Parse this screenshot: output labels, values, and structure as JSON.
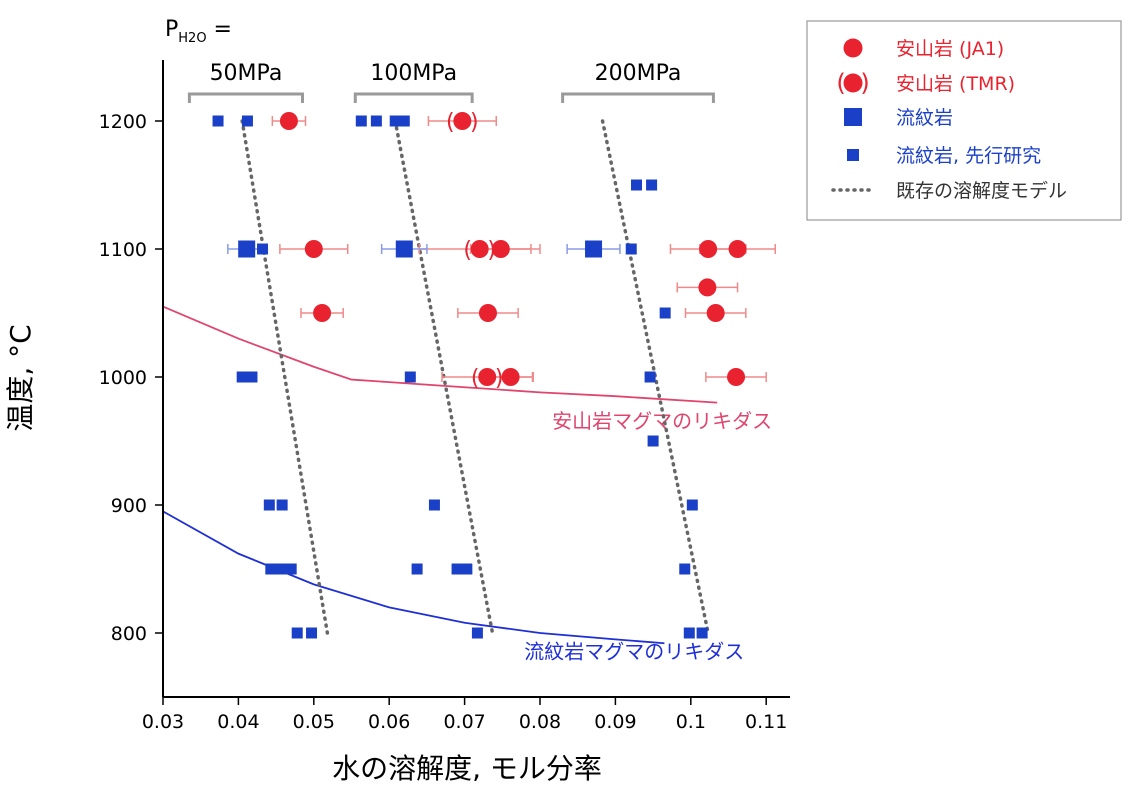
{
  "colors": {
    "andesite": "#e8232f",
    "rhyolite": "#1b40c8",
    "andesite_liquidus": "#e0456e",
    "rhyolite_liquidus": "#1e2fd6",
    "model": "#666666",
    "errorbar_red": "#f08a8a",
    "errorbar_blue": "#8a9be8"
  },
  "chart_data": {
    "type": "scatter",
    "xlabel": "水の溶解度, モル分率",
    "ylabel": "温度, °C",
    "xlim": [
      0.03,
      0.115
    ],
    "ylim": [
      750,
      1250
    ],
    "x_ticks": [
      0.03,
      0.04,
      0.05,
      0.06,
      0.07,
      0.08,
      0.09,
      0.1,
      0.11
    ],
    "x_tick_labels": [
      "0.03",
      "0.04",
      "0.05",
      "0.06",
      "0.07",
      "0.08",
      "0.09",
      "0.1",
      "0.11"
    ],
    "y_ticks": [
      800,
      900,
      1000,
      1100,
      1200
    ],
    "y_tick_labels": [
      "800",
      "900",
      "1000",
      "1100",
      "1200"
    ],
    "pressure_prefix": "P",
    "pressure_sub": "H2O",
    "pressure_suffix": " =",
    "pressure_groups": [
      {
        "label": "50MPa",
        "x_range": [
          0.0335,
          0.0485
        ]
      },
      {
        "label": "100MPa",
        "x_range": [
          0.0555,
          0.071
        ]
      },
      {
        "label": "200MPa",
        "x_range": [
          0.083,
          0.103
        ]
      }
    ],
    "legend": [
      {
        "marker": "circle-red",
        "label": "安山岩 (JA1)"
      },
      {
        "marker": "circle-red-paren",
        "label": "安山岩 (TMR)"
      },
      {
        "marker": "square-blue-large",
        "label": "流紋岩"
      },
      {
        "marker": "square-blue-small",
        "label": "流紋岩, 先行研究"
      },
      {
        "marker": "dotted-line",
        "label": "既存の溶解度モデル"
      }
    ],
    "paren_glyphs": [
      "(",
      ")"
    ],
    "series": [
      {
        "name": "安山岩 (JA1)",
        "marker": "circle",
        "points": [
          {
            "x": 0.0467,
            "y": 1200,
            "err": 0.0022
          },
          {
            "x": 0.05,
            "y": 1100,
            "err": 0.0045
          },
          {
            "x": 0.0748,
            "y": 1100,
            "err": 0.004
          },
          {
            "x": 0.1023,
            "y": 1100,
            "err": 0.005
          },
          {
            "x": 0.1062,
            "y": 1100,
            "err": 0.005
          },
          {
            "x": 0.0511,
            "y": 1050,
            "err": 0.0028
          },
          {
            "x": 0.0731,
            "y": 1050,
            "err": 0.004
          },
          {
            "x": 0.1022,
            "y": 1070,
            "err": 0.004
          },
          {
            "x": 0.1033,
            "y": 1050,
            "err": 0.004
          },
          {
            "x": 0.0761,
            "y": 1000,
            "err": 0.003
          },
          {
            "x": 0.106,
            "y": 1000,
            "err": 0.004
          }
        ]
      },
      {
        "name": "安山岩 (TMR)",
        "marker": "circle-paren",
        "points": [
          {
            "x": 0.0697,
            "y": 1200,
            "err": 0.0045
          },
          {
            "x": 0.072,
            "y": 1100,
            "err": 0.008
          },
          {
            "x": 0.073,
            "y": 1000,
            "err": 0.006
          }
        ]
      },
      {
        "name": "流紋岩",
        "marker": "square-large",
        "points": [
          {
            "x": 0.0411,
            "y": 1100,
            "err": 0.0025
          },
          {
            "x": 0.062,
            "y": 1100,
            "err": 0.003
          },
          {
            "x": 0.0871,
            "y": 1100,
            "err": 0.0035
          }
        ]
      },
      {
        "name": "流紋岩, 先行研究",
        "marker": "square-small",
        "points": [
          {
            "x": 0.0373,
            "y": 1200
          },
          {
            "x": 0.0412,
            "y": 1200
          },
          {
            "x": 0.0563,
            "y": 1200
          },
          {
            "x": 0.0583,
            "y": 1200
          },
          {
            "x": 0.0608,
            "y": 1200
          },
          {
            "x": 0.062,
            "y": 1200
          },
          {
            "x": 0.0928,
            "y": 1150
          },
          {
            "x": 0.0948,
            "y": 1150
          },
          {
            "x": 0.0432,
            "y": 1100
          },
          {
            "x": 0.0921,
            "y": 1100
          },
          {
            "x": 0.0966,
            "y": 1050
          },
          {
            "x": 0.0405,
            "y": 1000
          },
          {
            "x": 0.0418,
            "y": 1000
          },
          {
            "x": 0.0628,
            "y": 1000
          },
          {
            "x": 0.0946,
            "y": 1000
          },
          {
            "x": 0.095,
            "y": 950
          },
          {
            "x": 0.0441,
            "y": 900
          },
          {
            "x": 0.0458,
            "y": 900
          },
          {
            "x": 0.066,
            "y": 900
          },
          {
            "x": 0.1002,
            "y": 900
          },
          {
            "x": 0.0443,
            "y": 850
          },
          {
            "x": 0.0457,
            "y": 850
          },
          {
            "x": 0.047,
            "y": 850
          },
          {
            "x": 0.0637,
            "y": 850
          },
          {
            "x": 0.069,
            "y": 850
          },
          {
            "x": 0.0703,
            "y": 850
          },
          {
            "x": 0.0992,
            "y": 850
          },
          {
            "x": 0.0478,
            "y": 800
          },
          {
            "x": 0.0497,
            "y": 800
          },
          {
            "x": 0.0717,
            "y": 800
          },
          {
            "x": 0.0998,
            "y": 800
          },
          {
            "x": 0.1015,
            "y": 800
          }
        ]
      }
    ],
    "models": [
      {
        "name": "50MPa",
        "points": [
          [
            0.0405,
            1200
          ],
          [
            0.0518,
            800
          ]
        ]
      },
      {
        "name": "100MPa",
        "points": [
          [
            0.0608,
            1200
          ],
          [
            0.0737,
            800
          ]
        ]
      },
      {
        "name": "200MPa",
        "points": [
          [
            0.0883,
            1200
          ],
          [
            0.1023,
            800
          ]
        ]
      }
    ],
    "liquidus": [
      {
        "name": "安山岩マグマのリキダス",
        "points": [
          [
            0.03,
            1055
          ],
          [
            0.04,
            1030
          ],
          [
            0.05,
            1008
          ],
          [
            0.055,
            998
          ],
          [
            0.06,
            996
          ],
          [
            0.07,
            992
          ],
          [
            0.08,
            988
          ],
          [
            0.09,
            985
          ],
          [
            0.1035,
            980
          ]
        ],
        "label_at": [
          0.0962,
          960
        ]
      },
      {
        "name": "流紋岩マグマのリキダス",
        "points": [
          [
            0.03,
            895
          ],
          [
            0.04,
            862
          ],
          [
            0.05,
            838
          ],
          [
            0.06,
            820
          ],
          [
            0.07,
            808
          ],
          [
            0.08,
            800
          ],
          [
            0.09,
            795
          ],
          [
            0.0965,
            792
          ]
        ],
        "label_at": [
          0.0925,
          780
        ]
      }
    ]
  }
}
